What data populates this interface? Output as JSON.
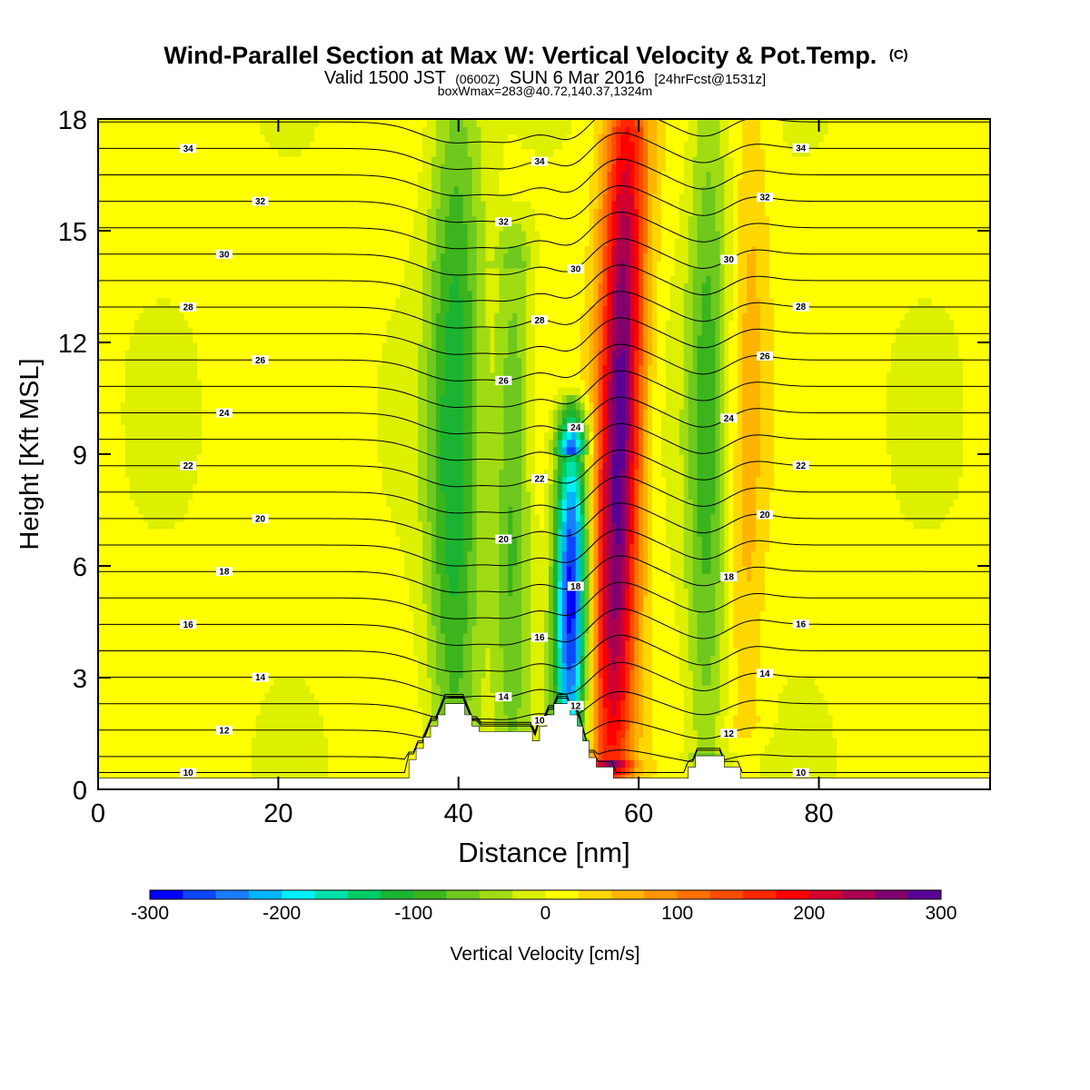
{
  "chart_data": {
    "type": "heatmap",
    "title": "Wind-Parallel Section at Max W: Vertical Velocity & Pot.Temp.",
    "title_mark": "(C)",
    "subtitle_parts": [
      "Valid 1500 JST",
      "(0600Z)",
      "SUN 6 Mar 2016",
      "[24hrFcst@1531z]"
    ],
    "subtitle2": "boxWmax=283@40.72,140.37,1324m",
    "xlabel": "Distance [nm]",
    "ylabel": "Height [Kft MSL]",
    "xlim": [
      0,
      99
    ],
    "ylim": [
      0,
      18
    ],
    "xticks": [
      0,
      20,
      40,
      60,
      80
    ],
    "yticks": [
      0,
      3,
      6,
      9,
      12,
      15,
      18
    ],
    "colorbar": {
      "label": "Vertical Velocity [cm/s]",
      "ticks": [
        -300,
        -200,
        -100,
        0,
        100,
        200,
        300
      ],
      "range": [
        -300,
        300
      ],
      "colors": [
        "#0000ff",
        "#0c46ff",
        "#1a7dff",
        "#00b4ff",
        "#00f0ff",
        "#00e0a8",
        "#00cc66",
        "#1ab432",
        "#3cb41e",
        "#6ec81e",
        "#a0dc14",
        "#dcf000",
        "#ffff00",
        "#ffd700",
        "#ffb400",
        "#ff9400",
        "#ff7000",
        "#ff4c00",
        "#ff2800",
        "#ff0000",
        "#d2002d",
        "#aa0050",
        "#82006e",
        "#5a0096"
      ]
    },
    "terrain": [
      [
        0,
        0.3
      ],
      [
        34.5,
        0.3
      ],
      [
        34.5,
        0.8
      ],
      [
        35.3,
        0.8
      ],
      [
        35.3,
        1.1
      ],
      [
        36.1,
        1.1
      ],
      [
        36.1,
        1.4
      ],
      [
        36.9,
        1.4
      ],
      [
        36.9,
        1.7
      ],
      [
        37.7,
        1.7
      ],
      [
        37.7,
        2.0
      ],
      [
        38.5,
        2.0
      ],
      [
        38.5,
        2.3
      ],
      [
        40.7,
        2.3
      ],
      [
        40.7,
        2.0
      ],
      [
        41.5,
        2.0
      ],
      [
        41.5,
        1.7
      ],
      [
        42.3,
        1.7
      ],
      [
        42.3,
        1.55
      ],
      [
        48.2,
        1.55
      ],
      [
        48.2,
        1.3
      ],
      [
        49.0,
        1.3
      ],
      [
        49.0,
        1.7
      ],
      [
        49.8,
        1.7
      ],
      [
        49.8,
        2.0
      ],
      [
        50.6,
        2.0
      ],
      [
        50.6,
        2.3
      ],
      [
        52.4,
        2.3
      ],
      [
        52.4,
        2.0
      ],
      [
        53.2,
        2.0
      ],
      [
        53.2,
        1.7
      ],
      [
        53.8,
        1.7
      ],
      [
        53.8,
        1.3
      ],
      [
        54.5,
        1.3
      ],
      [
        54.5,
        0.85
      ],
      [
        55.3,
        0.85
      ],
      [
        55.3,
        0.6
      ],
      [
        57.2,
        0.6
      ],
      [
        57.2,
        0.3
      ],
      [
        65.5,
        0.3
      ],
      [
        65.5,
        0.6
      ],
      [
        66.3,
        0.6
      ],
      [
        66.3,
        0.9
      ],
      [
        69.5,
        0.9
      ],
      [
        69.5,
        0.6
      ],
      [
        71.3,
        0.6
      ],
      [
        71.3,
        0.3
      ],
      [
        99,
        0.3
      ]
    ],
    "w_features": [
      {
        "x": 39.5,
        "z_min": 0.5,
        "z_max": 18,
        "peak_w": -120,
        "width_nm": 3.0
      },
      {
        "x": 46.0,
        "z_min": 1.5,
        "z_max": 14,
        "peak_w": -90,
        "width_nm": 2.0
      },
      {
        "x": 52.5,
        "z_min": 1.5,
        "z_max": 9,
        "peak_w": -300,
        "width_nm": 1.8
      },
      {
        "x": 57.5,
        "z_min": 0.8,
        "z_max": 18,
        "peak_w": 283,
        "width_nm": 2.5
      },
      {
        "x": 67.5,
        "z_min": 1.0,
        "z_max": 18,
        "peak_w": -90,
        "width_nm": 2.3
      },
      {
        "x": 72.0,
        "z_min": 2.0,
        "z_max": 18,
        "peak_w": 50,
        "width_nm": 2.0
      }
    ],
    "isentropes": {
      "levels": [
        10,
        11,
        12,
        13,
        14,
        15,
        16,
        17,
        18,
        19,
        20,
        21,
        22,
        23,
        24,
        25,
        26,
        27,
        28,
        29,
        30,
        31,
        32,
        33,
        34,
        35
      ],
      "labeled": [
        10,
        12,
        14,
        16,
        18,
        20,
        22,
        24,
        26,
        28,
        30,
        32,
        34
      ],
      "label_text": [
        "10",
        "12",
        "14",
        "16",
        "18",
        "20",
        "22",
        "24",
        "26",
        "28",
        "30",
        "32",
        "34"
      ]
    }
  }
}
